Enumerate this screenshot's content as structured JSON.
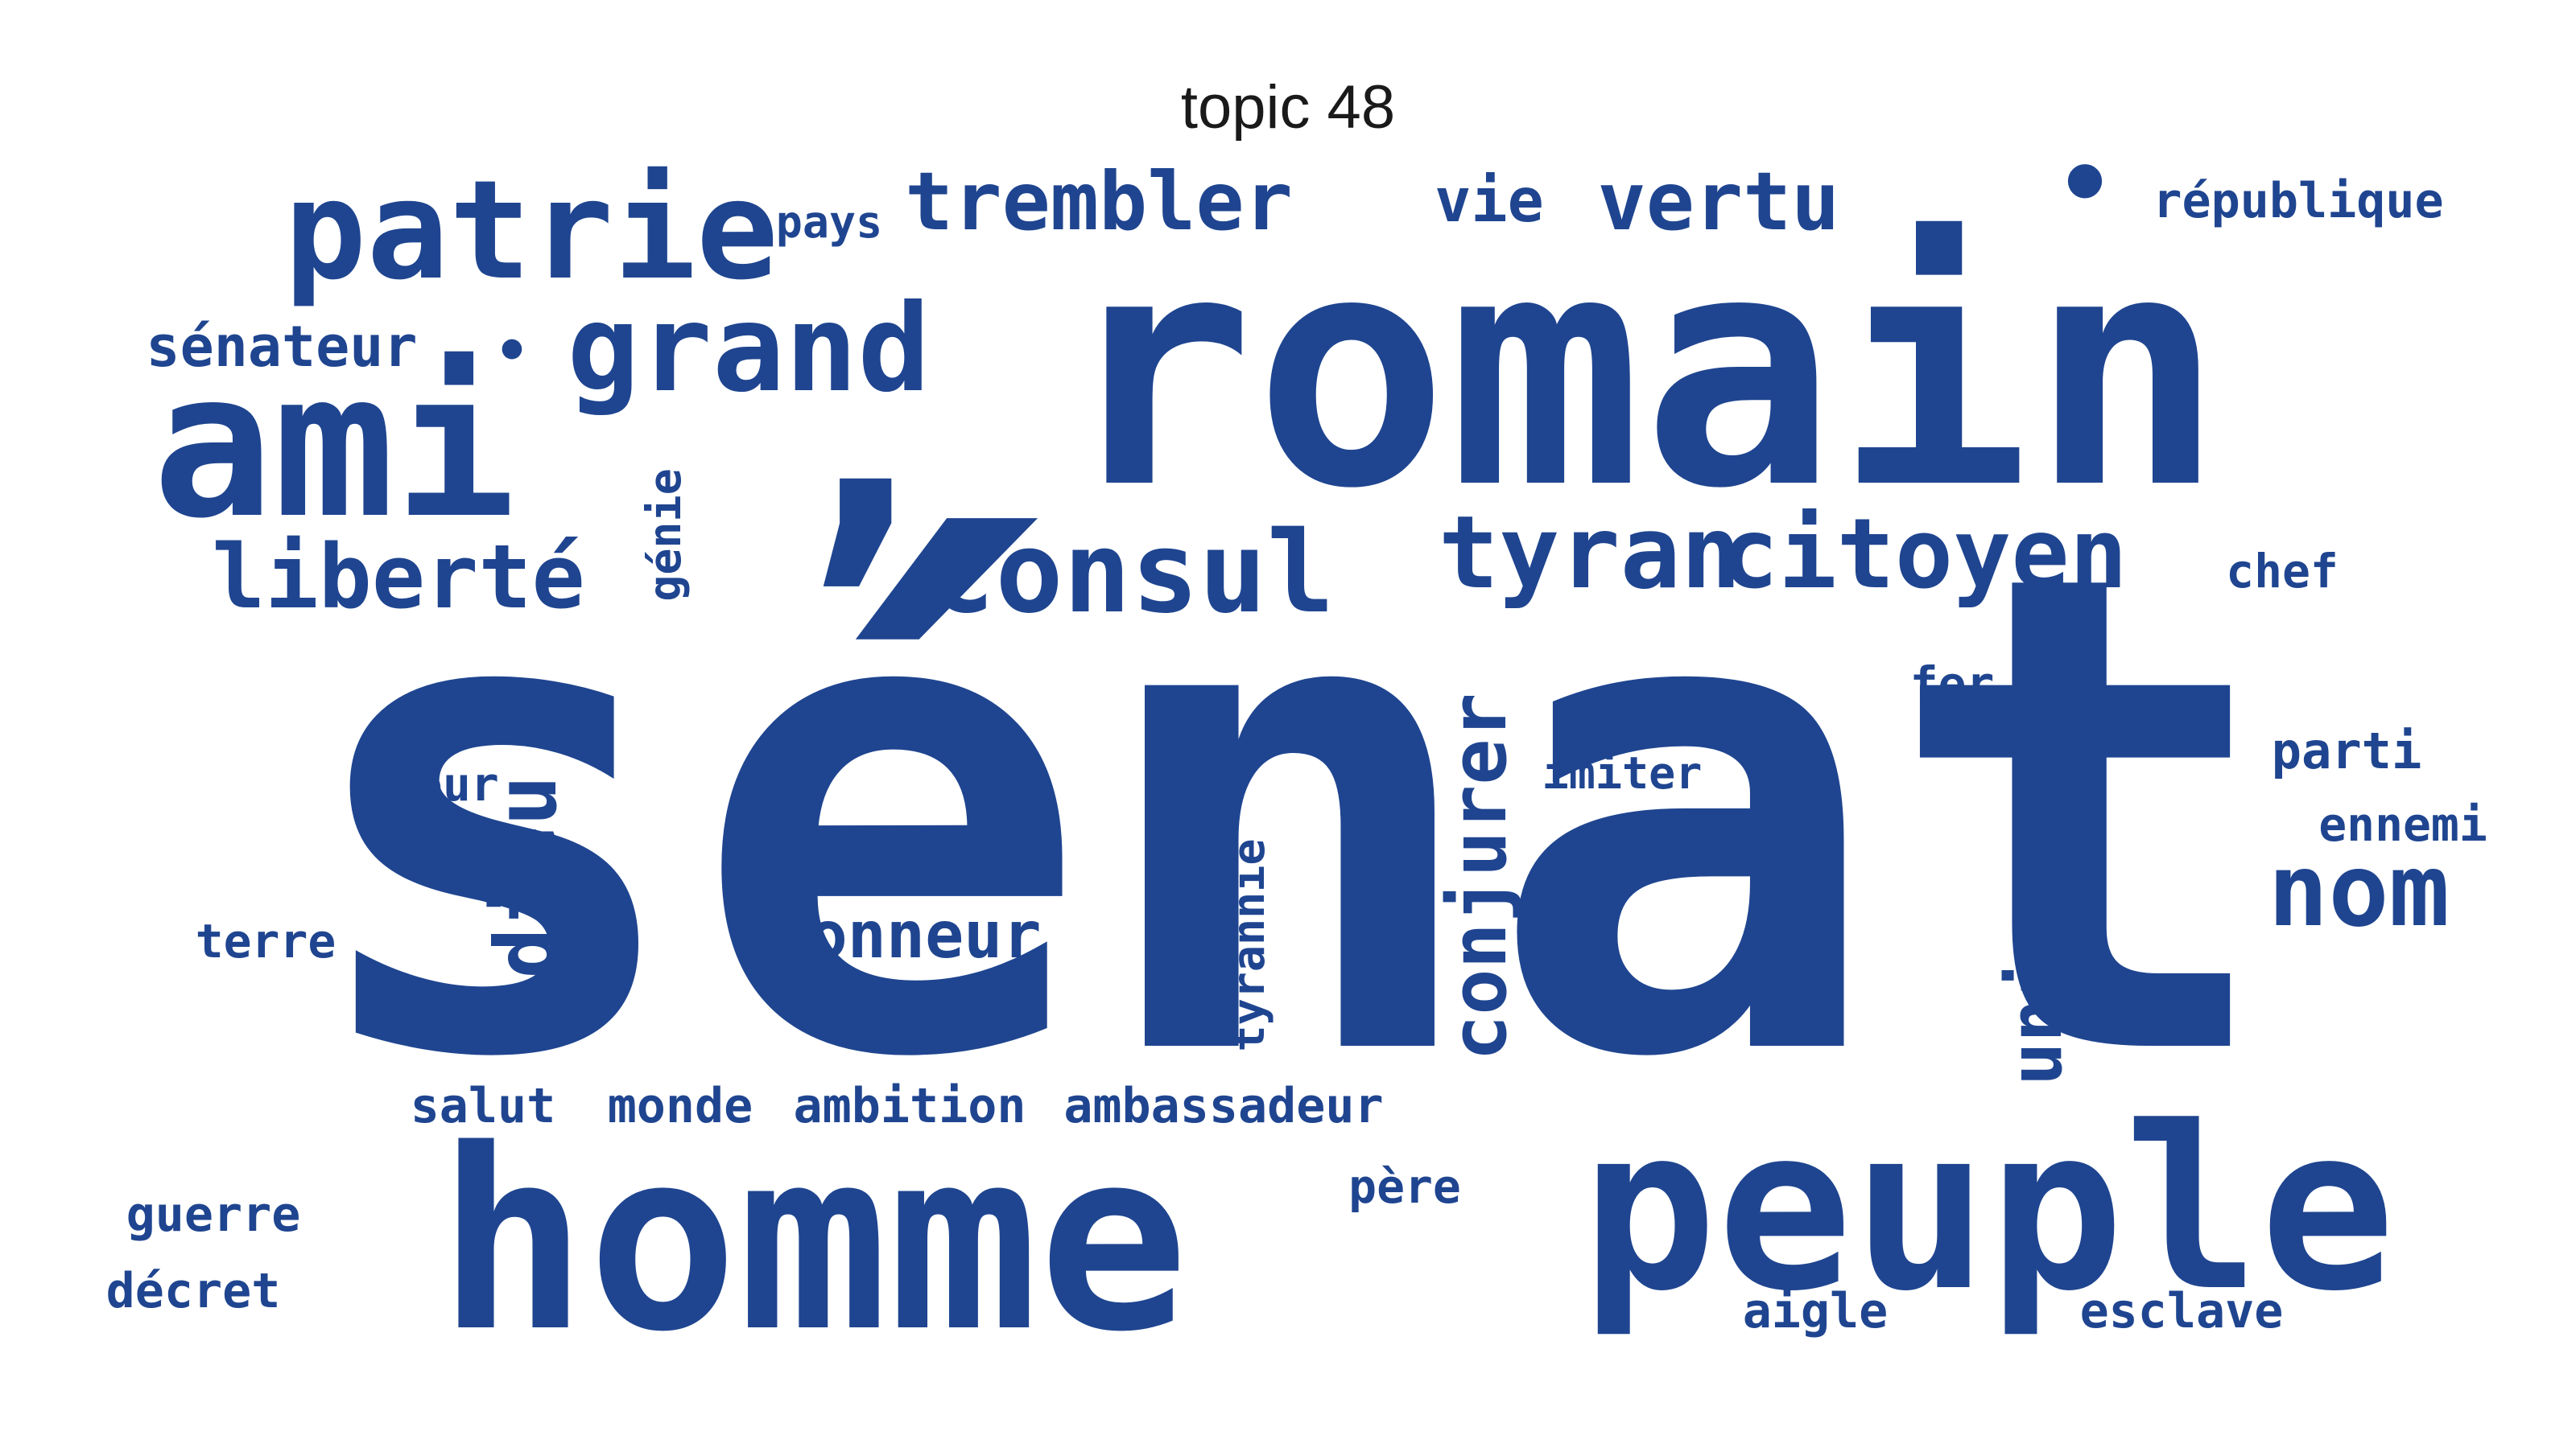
{
  "title": "topic 48",
  "word_color": "#1f4590",
  "background": "#ffffff",
  "words": [
    {
      "text": "sénat",
      "size": 820,
      "vertical": false
    },
    {
      "text": "romain",
      "size": 400,
      "vertical": false
    },
    {
      "text": "homme",
      "size": 310,
      "vertical": false
    },
    {
      "text": "peuple",
      "size": 280,
      "vertical": false
    },
    {
      "text": "ami",
      "size": 250,
      "vertical": false
    },
    {
      "text": "patrie",
      "size": 170,
      "vertical": false
    },
    {
      "text": "grand",
      "size": 150,
      "vertical": false
    },
    {
      "text": "consul",
      "size": 140,
      "vertical": false
    },
    {
      "text": "tyran",
      "size": 125,
      "vertical": false
    },
    {
      "text": "citoyen",
      "size": 120,
      "vertical": false
    },
    {
      "text": "nom",
      "size": 125,
      "vertical": false
    },
    {
      "text": "liberté",
      "size": 110,
      "vertical": false
    },
    {
      "text": "trembler",
      "size": 100,
      "vertical": false
    },
    {
      "text": "vertu",
      "size": 100,
      "vertical": false
    },
    {
      "text": "dieu",
      "size": 105,
      "vertical": true
    },
    {
      "text": "conjurer",
      "size": 95,
      "vertical": true
    },
    {
      "text": "univers",
      "size": 90,
      "vertical": true
    },
    {
      "text": "honneur",
      "size": 80,
      "vertical": false
    },
    {
      "text": "vie",
      "size": 75,
      "vertical": false
    },
    {
      "text": "sénateur",
      "size": 70,
      "vertical": false
    },
    {
      "text": "république",
      "size": 60,
      "vertical": false
    },
    {
      "text": "ambassadeur",
      "size": 60,
      "vertical": false
    },
    {
      "text": "ambition",
      "size": 60,
      "vertical": false
    },
    {
      "text": "salut",
      "size": 60,
      "vertical": false
    },
    {
      "text": "monde",
      "size": 60,
      "vertical": false
    },
    {
      "text": "imiter",
      "size": 55,
      "vertical": false
    },
    {
      "text": "tour",
      "size": 58,
      "vertical": false
    },
    {
      "text": "terre",
      "size": 58,
      "vertical": false
    },
    {
      "text": "parti",
      "size": 62,
      "vertical": false
    },
    {
      "text": "ennemi",
      "size": 58,
      "vertical": false
    },
    {
      "text": "chef",
      "size": 58,
      "vertical": false
    },
    {
      "text": "fer",
      "size": 58,
      "vertical": false
    },
    {
      "text": "pays",
      "size": 55,
      "vertical": false
    },
    {
      "text": "génie",
      "size": 55,
      "vertical": true
    },
    {
      "text": "tyrannie",
      "size": 55,
      "vertical": true
    },
    {
      "text": "guerre",
      "size": 60,
      "vertical": false
    },
    {
      "text": "décret",
      "size": 60,
      "vertical": false
    },
    {
      "text": "père",
      "size": 58,
      "vertical": false
    },
    {
      "text": "aigle",
      "size": 60,
      "vertical": false
    },
    {
      "text": "esclave",
      "size": 60,
      "vertical": false
    }
  ]
}
